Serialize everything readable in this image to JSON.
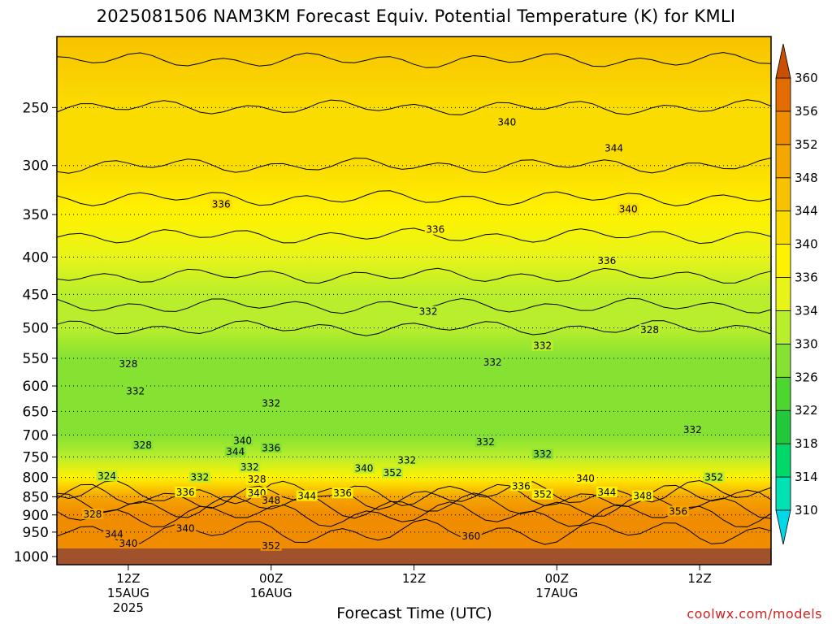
{
  "chart_data": {
    "type": "heatmap",
    "title": "2025081506 NAM3KM Forecast Equiv. Potential Temperature (K) for KMLI",
    "xlabel": "Forecast Time (UTC)",
    "ylabel": "",
    "y_scale": "log",
    "y_reversed": true,
    "ylim": [
      1000,
      200
    ],
    "y_ticks": [
      250,
      300,
      350,
      400,
      450,
      500,
      550,
      600,
      650,
      700,
      750,
      800,
      850,
      900,
      950,
      1000
    ],
    "x_ticks": [
      {
        "line1": "12Z",
        "line2": "15AUG",
        "line3": "2025"
      },
      {
        "line1": "00Z",
        "line2": "16AUG",
        "line3": ""
      },
      {
        "line1": "12Z",
        "line2": "",
        "line3": ""
      },
      {
        "line1": "00Z",
        "line2": "17AUG",
        "line3": ""
      },
      {
        "line1": "12Z",
        "line2": "",
        "line3": ""
      }
    ],
    "grid": true,
    "colorbar": {
      "levels": [
        310,
        314,
        318,
        322,
        326,
        330,
        334,
        336,
        340,
        344,
        348,
        352,
        356,
        360
      ],
      "colors": [
        "#00d8e8",
        "#00e2b4",
        "#00d86a",
        "#22c83a",
        "#4cd62e",
        "#86e232",
        "#b8ee2c",
        "#e8f418",
        "#fff200",
        "#fbdc00",
        "#f8c200",
        "#f5a600",
        "#f08c00",
        "#e26c00",
        "#c85000"
      ]
    },
    "profile": [
      {
        "pressure": 200,
        "theta_e": 345
      },
      {
        "pressure": 250,
        "theta_e": 342
      },
      {
        "pressure": 300,
        "theta_e": 340
      },
      {
        "pressure": 350,
        "theta_e": 337
      },
      {
        "pressure": 400,
        "theta_e": 335
      },
      {
        "pressure": 450,
        "theta_e": 333
      },
      {
        "pressure": 500,
        "theta_e": 330
      },
      {
        "pressure": 550,
        "theta_e": 329
      },
      {
        "pressure": 600,
        "theta_e": 329
      },
      {
        "pressure": 650,
        "theta_e": 329
      },
      {
        "pressure": 700,
        "theta_e": 329
      },
      {
        "pressure": 750,
        "theta_e": 330
      },
      {
        "pressure": 800,
        "theta_e": 338
      },
      {
        "pressure": 850,
        "theta_e": 348
      },
      {
        "pressure": 900,
        "theta_e": 352
      },
      {
        "pressure": 950,
        "theta_e": 354
      },
      {
        "pressure": 1000,
        "theta_e": 354
      }
    ],
    "contour_labels": [
      {
        "text": "340",
        "time": 0.63,
        "pressure": 262
      },
      {
        "text": "344",
        "time": 0.78,
        "pressure": 284
      },
      {
        "text": "336",
        "time": 0.23,
        "pressure": 339
      },
      {
        "text": "340",
        "time": 0.8,
        "pressure": 344
      },
      {
        "text": "336",
        "time": 0.53,
        "pressure": 367
      },
      {
        "text": "336",
        "time": 0.77,
        "pressure": 405
      },
      {
        "text": "332",
        "time": 0.52,
        "pressure": 475
      },
      {
        "text": "332",
        "time": 0.68,
        "pressure": 529
      },
      {
        "text": "328",
        "time": 0.83,
        "pressure": 503
      },
      {
        "text": "328",
        "time": 0.1,
        "pressure": 560
      },
      {
        "text": "332",
        "time": 0.61,
        "pressure": 557
      },
      {
        "text": "332",
        "time": 0.11,
        "pressure": 610
      },
      {
        "text": "332",
        "time": 0.3,
        "pressure": 634
      },
      {
        "text": "340",
        "time": 0.26,
        "pressure": 713
      },
      {
        "text": "336",
        "time": 0.3,
        "pressure": 729
      },
      {
        "text": "344",
        "time": 0.25,
        "pressure": 738
      },
      {
        "text": "328",
        "time": 0.12,
        "pressure": 723
      },
      {
        "text": "332",
        "time": 0.49,
        "pressure": 758
      },
      {
        "text": "332",
        "time": 0.6,
        "pressure": 716
      },
      {
        "text": "332",
        "time": 0.68,
        "pressure": 744
      },
      {
        "text": "332",
        "time": 0.89,
        "pressure": 689
      },
      {
        "text": "332",
        "time": 0.27,
        "pressure": 775
      },
      {
        "text": "340",
        "time": 0.43,
        "pressure": 778
      },
      {
        "text": "352",
        "time": 0.47,
        "pressure": 789
      },
      {
        "text": "324",
        "time": 0.07,
        "pressure": 797
      },
      {
        "text": "332",
        "time": 0.2,
        "pressure": 800
      },
      {
        "text": "328",
        "time": 0.28,
        "pressure": 805
      },
      {
        "text": "340",
        "time": 0.74,
        "pressure": 803
      },
      {
        "text": "352",
        "time": 0.92,
        "pressure": 800
      },
      {
        "text": "336",
        "time": 0.18,
        "pressure": 838
      },
      {
        "text": "340",
        "time": 0.28,
        "pressure": 840
      },
      {
        "text": "344",
        "time": 0.35,
        "pressure": 848
      },
      {
        "text": "336",
        "time": 0.4,
        "pressure": 841
      },
      {
        "text": "336",
        "time": 0.65,
        "pressure": 822
      },
      {
        "text": "352",
        "time": 0.68,
        "pressure": 844
      },
      {
        "text": "344",
        "time": 0.77,
        "pressure": 838
      },
      {
        "text": "348",
        "time": 0.82,
        "pressure": 848
      },
      {
        "text": "348",
        "time": 0.3,
        "pressure": 860
      },
      {
        "text": "328",
        "time": 0.05,
        "pressure": 898
      },
      {
        "text": "356",
        "time": 0.87,
        "pressure": 890
      },
      {
        "text": "340",
        "time": 0.18,
        "pressure": 939
      },
      {
        "text": "344",
        "time": 0.08,
        "pressure": 956
      },
      {
        "text": "360",
        "time": 0.58,
        "pressure": 962
      },
      {
        "text": "340",
        "time": 0.1,
        "pressure": 985
      },
      {
        "text": "352",
        "time": 0.3,
        "pressure": 992
      }
    ]
  },
  "credit": "coolwx.com/models"
}
